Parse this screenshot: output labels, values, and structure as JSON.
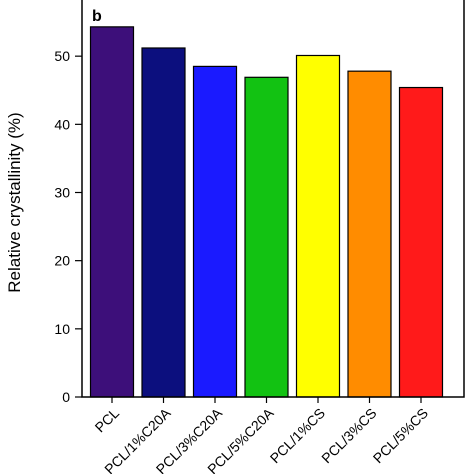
{
  "chart_data": {
    "type": "bar",
    "panel_label": "b",
    "ylabel": "Relative crystallinity (%)",
    "xlabel": "",
    "ylim": [
      0,
      60
    ],
    "yticks": [
      0,
      10,
      20,
      30,
      40,
      50,
      60
    ],
    "grid": false,
    "categories": [
      "PCL",
      "PCL/1%C20A",
      "PCL/3%C20A",
      "PCL/5%C20A",
      "PCL/1%CS",
      "PCL/3%CS",
      "PCL/5%CS"
    ],
    "values": [
      54.3,
      51.2,
      48.5,
      46.9,
      50.1,
      47.8,
      45.4
    ],
    "colors": [
      "#3d0f7a",
      "#0c0f7e",
      "#1a1aff",
      "#12c212",
      "#ffff00",
      "#ff8c00",
      "#ff1a1a"
    ]
  }
}
